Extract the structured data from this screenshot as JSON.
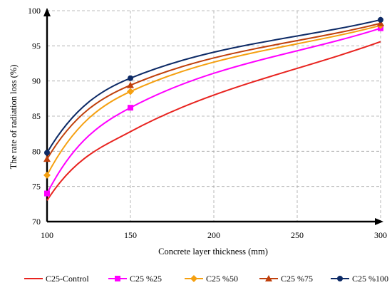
{
  "chart_data": {
    "type": "line",
    "xlabel": "Concrete layer thickness (mm)",
    "ylabel": "The rate of radiation loss (%)",
    "xlim": [
      100,
      300
    ],
    "ylim": [
      70,
      100
    ],
    "x_ticks": [
      100,
      150,
      200,
      250,
      300
    ],
    "y_ticks": [
      70,
      75,
      80,
      85,
      90,
      95,
      100
    ],
    "grid": true,
    "legend_position": "bottom",
    "x": [
      100,
      150,
      300
    ],
    "series": [
      {
        "name": "C25-Control",
        "values": [
          73.0,
          82.8,
          95.6
        ],
        "color": "#e8231f",
        "marker": "none"
      },
      {
        "name": "C25 %25",
        "values": [
          74.0,
          86.2,
          97.5
        ],
        "color": "#ff00ff",
        "marker": "square"
      },
      {
        "name": "C25 %50",
        "values": [
          76.6,
          88.5,
          97.9
        ],
        "color": "#f5a010",
        "marker": "diamond"
      },
      {
        "name": "C25 %75",
        "values": [
          78.9,
          89.4,
          98.2
        ],
        "color": "#c0400c",
        "marker": "triangle"
      },
      {
        "name": "C25 %100",
        "values": [
          79.8,
          90.4,
          98.7
        ],
        "color": "#0d2a66",
        "marker": "circle"
      }
    ]
  }
}
